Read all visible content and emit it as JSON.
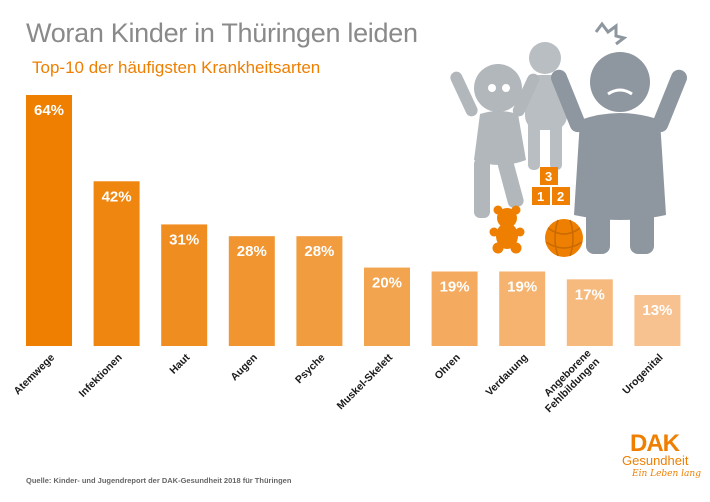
{
  "title": "Woran Kinder in Thüringen leiden",
  "subtitle": "Top-10 der häufigsten Krankheitsarten",
  "source": "Quelle: Kinder- und Jugendreport der DAK-Gesundheit 2018 für Thüringen",
  "logo": {
    "mark": "DAK",
    "name": "Gesundheit",
    "slogan": "Ein Leben lang"
  },
  "illustration": {
    "blocks": [
      "3",
      "1",
      "2"
    ]
  },
  "colors": {
    "title": "#8a8a8a",
    "accent": "#ee7f00",
    "bars": [
      "#ee7f00",
      "#ef8610",
      "#f08d20",
      "#f19530",
      "#f29c40",
      "#f3a44f",
      "#f4ab5f",
      "#f5b36f",
      "#f6ba7f",
      "#f7c28f"
    ]
  },
  "chart_data": {
    "type": "bar",
    "title": "Woran Kinder in Thüringen leiden",
    "subtitle": "Top-10 der häufigsten Krankheitsarten",
    "categories": [
      "Atemwege",
      "Infektionen",
      "Haut",
      "Augen",
      "Psyche",
      "Muskel-Skelett",
      "Ohren",
      "Verdauung",
      "Angeborene Fehlbildungen",
      "Urogenital"
    ],
    "category_lines": [
      [
        "Atemwege"
      ],
      [
        "Infektionen"
      ],
      [
        "Haut"
      ],
      [
        "Augen"
      ],
      [
        "Psyche"
      ],
      [
        "Muskel-Skelett"
      ],
      [
        "Ohren"
      ],
      [
        "Verdauung"
      ],
      [
        "Angeborene",
        "Fehlbildungen"
      ],
      [
        "Urogenital"
      ]
    ],
    "values": [
      64,
      42,
      31,
      28,
      28,
      20,
      19,
      19,
      17,
      13
    ],
    "value_labels": [
      "64%",
      "42%",
      "31%",
      "28%",
      "28%",
      "20%",
      "19%",
      "19%",
      "17%",
      "13%"
    ],
    "unit": "%",
    "ylim": [
      0,
      64
    ],
    "grid": false,
    "legend": "none"
  }
}
